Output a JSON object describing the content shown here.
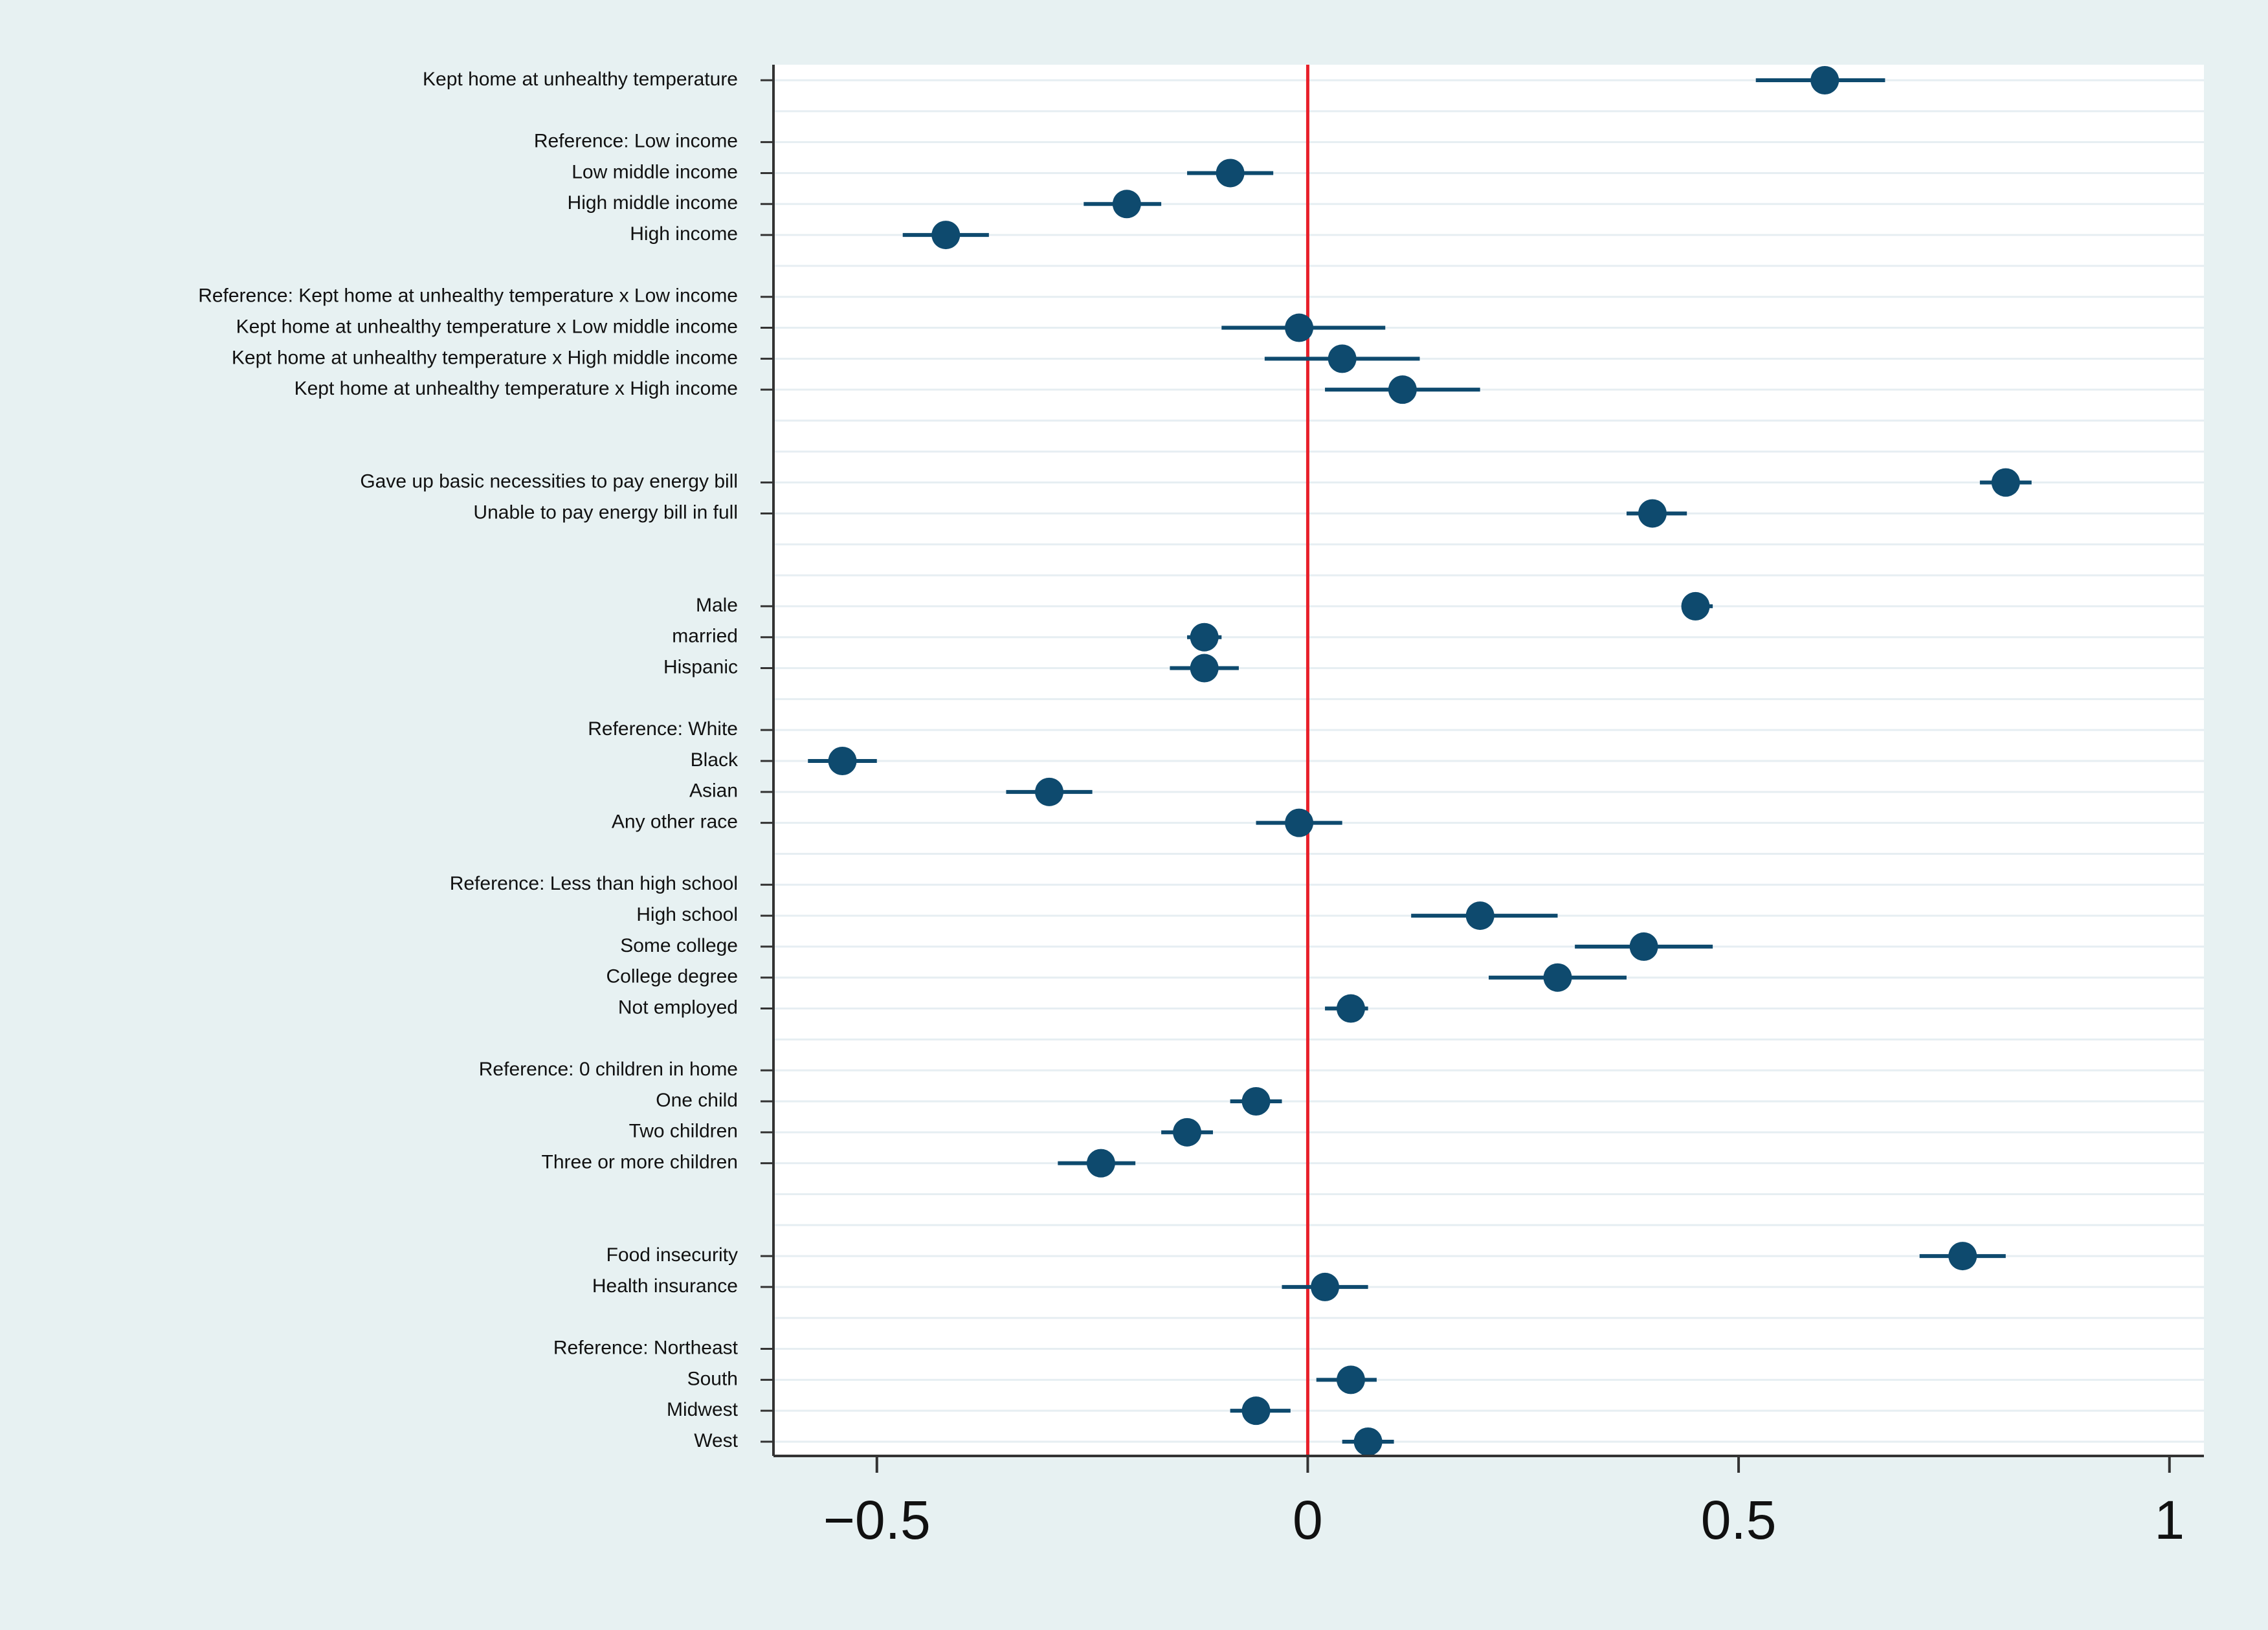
{
  "chart_data": {
    "type": "coefficient-plot",
    "title": "",
    "xlabel": "",
    "ylabel": "",
    "xlim": [
      -0.62,
      1.04
    ],
    "xticks": [
      -0.5,
      0,
      0.5,
      1
    ],
    "xtick_labels": [
      "−0.5",
      "0",
      "0.5",
      "1"
    ],
    "reference_line": {
      "x": 0,
      "color": "#e8202a"
    },
    "marker_color": "#0e4a6e",
    "background": "#e7f1f2",
    "plot_background": "#ffffff",
    "grid": true,
    "rows": [
      {
        "label": "Kept home at unhealthy temperature",
        "est": 0.6,
        "lo": 0.52,
        "hi": 0.67
      },
      {
        "label": ""
      },
      {
        "label": "Reference: Low income",
        "est": null
      },
      {
        "label": "Low middle income",
        "est": -0.09,
        "lo": -0.14,
        "hi": -0.04
      },
      {
        "label": "High middle income",
        "est": -0.21,
        "lo": -0.26,
        "hi": -0.17
      },
      {
        "label": "High income",
        "est": -0.42,
        "lo": -0.47,
        "hi": -0.37
      },
      {
        "label": ""
      },
      {
        "label": "Reference: Kept home at unhealthy temperature x Low income",
        "est": null
      },
      {
        "label": "Kept home at unhealthy temperature x Low middle income",
        "est": -0.01,
        "lo": -0.1,
        "hi": 0.09
      },
      {
        "label": "Kept home at unhealthy temperature x High middle income",
        "est": 0.04,
        "lo": -0.05,
        "hi": 0.13
      },
      {
        "label": "Kept home at unhealthy temperature x High income",
        "est": 0.11,
        "lo": 0.02,
        "hi": 0.2
      },
      {
        "label": ""
      },
      {
        "label": ""
      },
      {
        "label": "Gave up basic necessities to pay energy bill",
        "est": 0.81,
        "lo": 0.78,
        "hi": 0.84
      },
      {
        "label": "Unable to pay energy bill in full",
        "est": 0.4,
        "lo": 0.37,
        "hi": 0.44
      },
      {
        "label": ""
      },
      {
        "label": ""
      },
      {
        "label": "Male",
        "est": 0.45,
        "lo": 0.44,
        "hi": 0.47
      },
      {
        "label": "married",
        "est": -0.12,
        "lo": -0.14,
        "hi": -0.1
      },
      {
        "label": "Hispanic",
        "est": -0.12,
        "lo": -0.16,
        "hi": -0.08
      },
      {
        "label": ""
      },
      {
        "label": "Reference: White",
        "est": null
      },
      {
        "label": "Black",
        "est": -0.54,
        "lo": -0.58,
        "hi": -0.5
      },
      {
        "label": "Asian",
        "est": -0.3,
        "lo": -0.35,
        "hi": -0.25
      },
      {
        "label": "Any other race",
        "est": -0.01,
        "lo": -0.06,
        "hi": 0.04
      },
      {
        "label": ""
      },
      {
        "label": "Reference: Less than high school",
        "est": null
      },
      {
        "label": "High school",
        "est": 0.2,
        "lo": 0.12,
        "hi": 0.29
      },
      {
        "label": "Some college",
        "est": 0.39,
        "lo": 0.31,
        "hi": 0.47
      },
      {
        "label": "College degree",
        "est": 0.29,
        "lo": 0.21,
        "hi": 0.37
      },
      {
        "label": "Not employed",
        "est": 0.05,
        "lo": 0.02,
        "hi": 0.07
      },
      {
        "label": ""
      },
      {
        "label": "Reference: 0 children in home",
        "est": null
      },
      {
        "label": "One child",
        "est": -0.06,
        "lo": -0.09,
        "hi": -0.03
      },
      {
        "label": "Two children",
        "est": -0.14,
        "lo": -0.17,
        "hi": -0.11
      },
      {
        "label": "Three or more children",
        "est": -0.24,
        "lo": -0.29,
        "hi": -0.2
      },
      {
        "label": ""
      },
      {
        "label": ""
      },
      {
        "label": "Food insecurity",
        "est": 0.76,
        "lo": 0.71,
        "hi": 0.81
      },
      {
        "label": "Health insurance",
        "est": 0.02,
        "lo": -0.03,
        "hi": 0.07
      },
      {
        "label": ""
      },
      {
        "label": "Reference: Northeast",
        "est": null
      },
      {
        "label": "South",
        "est": 0.05,
        "lo": 0.01,
        "hi": 0.08
      },
      {
        "label": "Midwest",
        "est": -0.06,
        "lo": -0.09,
        "hi": -0.02
      },
      {
        "label": "West",
        "est": 0.07,
        "lo": 0.04,
        "hi": 0.1
      }
    ]
  }
}
